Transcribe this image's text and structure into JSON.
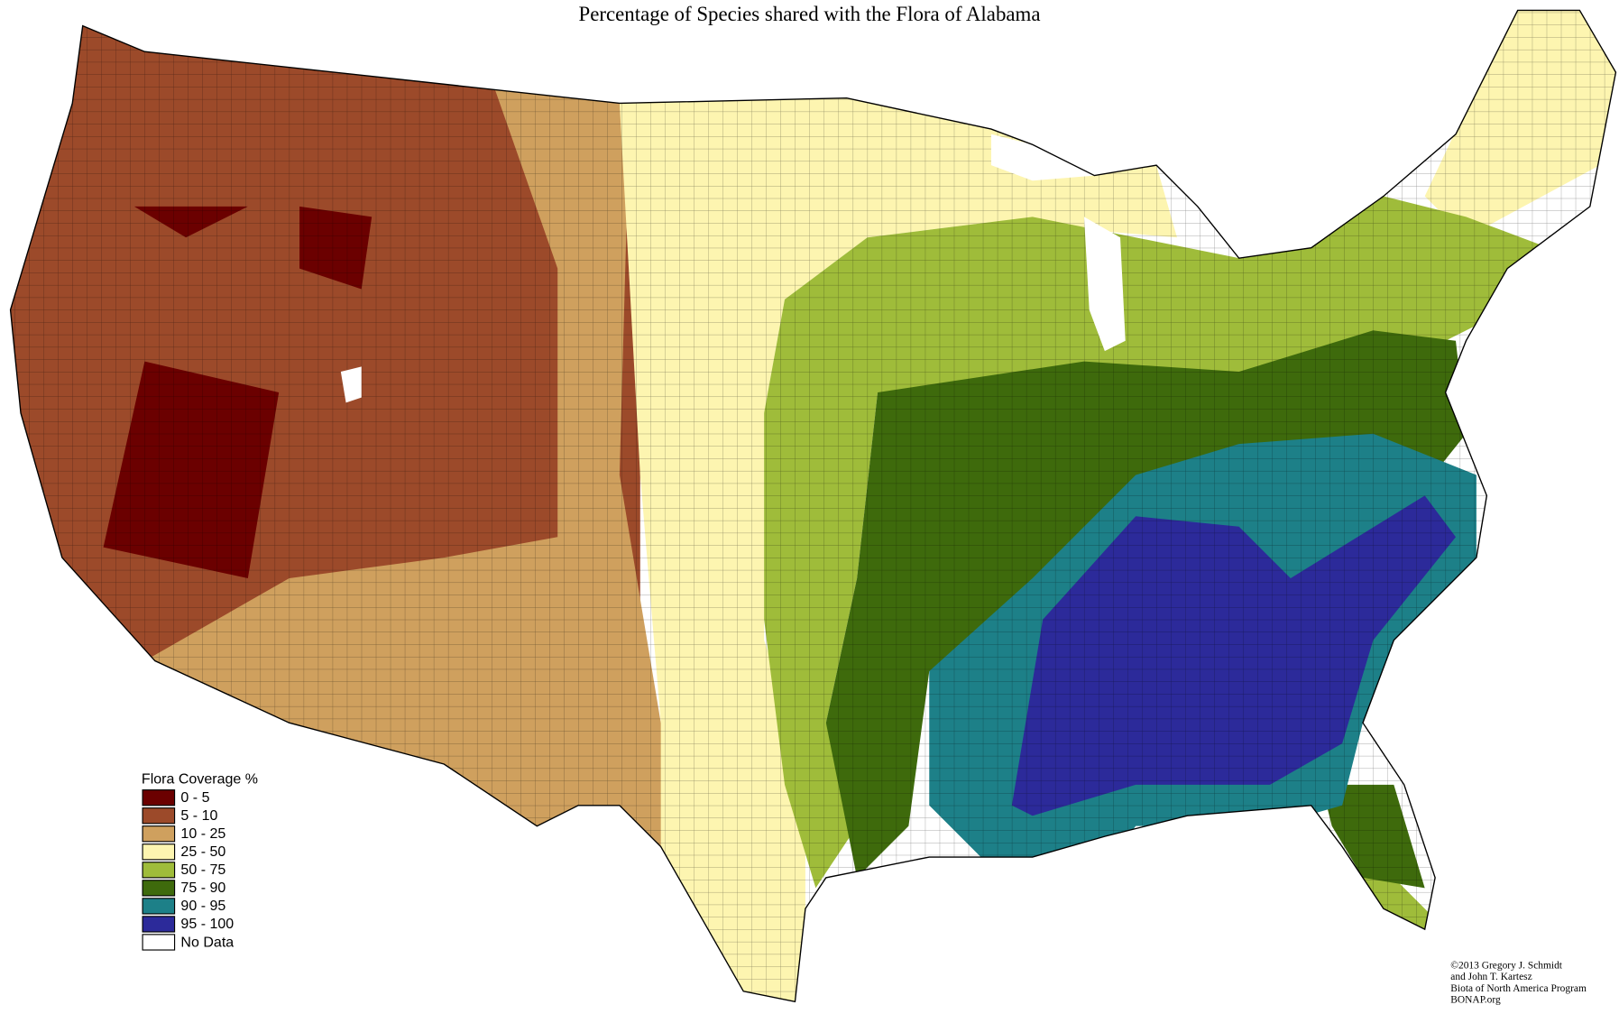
{
  "title": "Percentage of Species shared with the Flora of Alabama",
  "legend": {
    "title": "Flora Coverage %",
    "items": [
      {
        "label": "0 - 5",
        "color": "#6b0000"
      },
      {
        "label": "5 - 10",
        "color": "#9c4a2a"
      },
      {
        "label": "10 - 25",
        "color": "#cfa05e"
      },
      {
        "label": "25 - 50",
        "color": "#fdf5b0"
      },
      {
        "label": "50 - 75",
        "color": "#9fbc3a"
      },
      {
        "label": "75 - 90",
        "color": "#3e6a0c"
      },
      {
        "label": "90 - 95",
        "color": "#1d8088"
      },
      {
        "label": "95 - 100",
        "color": "#2c2a9a"
      },
      {
        "label": "No Data",
        "color": "#ffffff"
      }
    ]
  },
  "credits": [
    "©2013 Gregory J. Schmidt",
    "and John T. Kartesz",
    "Biota of North America Program",
    "BONAP.org"
  ]
}
